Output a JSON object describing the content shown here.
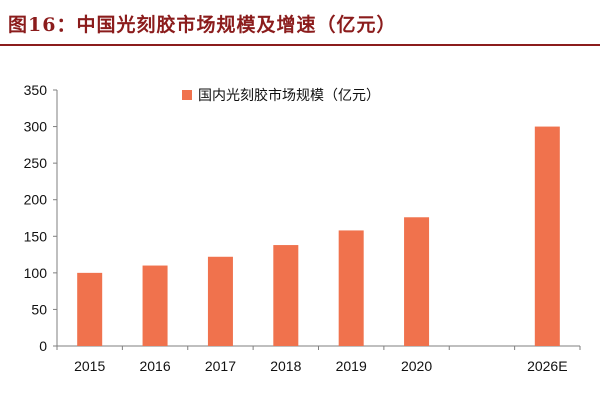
{
  "figure": {
    "title": "图16：中国光刻胶市场规模及增速（亿元）"
  },
  "colors": {
    "title": "#8b1c1c",
    "bar": "#f0724d",
    "axis": "#7f7f7f"
  },
  "chart_data": {
    "type": "bar",
    "title": "",
    "xlabel": "",
    "ylabel": "",
    "categories": [
      "2015",
      "2016",
      "2017",
      "2018",
      "2019",
      "2020",
      "",
      "2026E"
    ],
    "series": [
      {
        "name": "国内光刻胶市场规模（亿元）",
        "values": [
          100,
          110,
          122,
          138,
          158,
          176,
          null,
          300
        ]
      }
    ],
    "ylim": [
      0,
      350
    ],
    "yticks": [
      0,
      50,
      100,
      150,
      200,
      250,
      300,
      350
    ],
    "grid": false,
    "legend_position": "top-center"
  }
}
